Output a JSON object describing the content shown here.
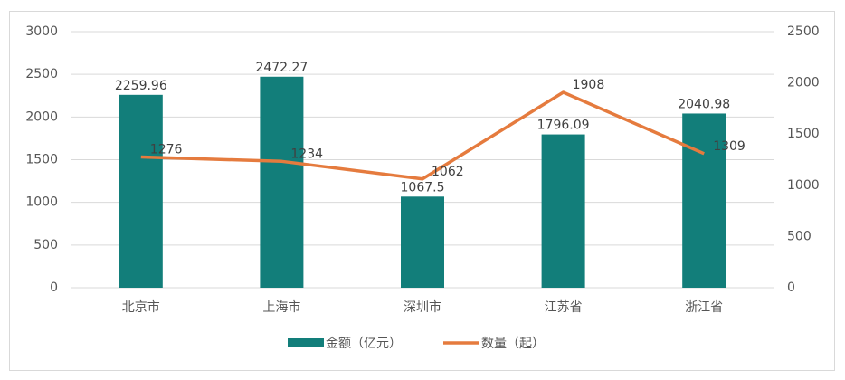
{
  "chart_data": {
    "type": "combo",
    "categories": [
      "北京市",
      "上海市",
      "深圳市",
      "江苏省",
      "浙江省"
    ],
    "series": [
      {
        "name": "金额（亿元）",
        "type": "bar",
        "color": "#127e7a",
        "values": [
          2259.96,
          2472.27,
          1067.5,
          1796.09,
          2040.98
        ]
      },
      {
        "name": "数量（起）",
        "type": "line",
        "axis": "y2",
        "color": "#e57b3e",
        "values": [
          1276,
          1234,
          1062,
          1908,
          1309
        ]
      }
    ],
    "ylim": [
      0,
      3000
    ],
    "yticks": [
      0,
      500,
      1000,
      1500,
      2000,
      2500,
      3000
    ],
    "y2lim": [
      0,
      2500
    ],
    "y2ticks": [
      0,
      500,
      1000,
      1500,
      2000,
      2500
    ],
    "grid": true,
    "legend": "bottom"
  }
}
